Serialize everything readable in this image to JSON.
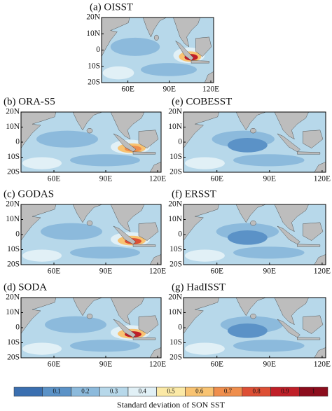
{
  "panels": [
    {
      "title": "(a) OISST"
    },
    {
      "title": "(b) ORA-S5"
    },
    {
      "title": "(c) GODAS"
    },
    {
      "title": "(d) SODA"
    },
    {
      "title": "(e) COBESST"
    },
    {
      "title": "(f) ERSST"
    },
    {
      "title": "(g) HadISST"
    }
  ],
  "lat_labels": [
    "20N",
    "10N",
    "0",
    "10S",
    "20S"
  ],
  "lon_labels": [
    "60E",
    "90E",
    "120E"
  ],
  "colorbar": {
    "ticks": [
      0.1,
      0.2,
      0.3,
      0.4,
      0.5,
      0.6,
      0.7,
      0.8,
      0.9,
      1
    ],
    "colors": [
      "#3b6fb0",
      "#5b92c7",
      "#8cbadc",
      "#b7d8ea",
      "#e1f0f6",
      "#fbe9a6",
      "#f8c372",
      "#ef8e4d",
      "#dd4f35",
      "#c01f28",
      "#8c0d1d"
    ],
    "label": "Standard deviation of SON SST"
  }
}
